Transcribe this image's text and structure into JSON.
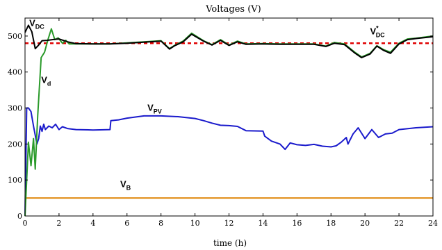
{
  "chart_data": {
    "type": "line",
    "title": "Voltages (V)",
    "xlabel": "time (h)",
    "ylabel": "",
    "xlim": [
      0,
      24
    ],
    "ylim": [
      0,
      550
    ],
    "x_ticks": [
      0,
      2,
      4,
      6,
      8,
      10,
      12,
      14,
      16,
      18,
      20,
      22,
      24
    ],
    "y_ticks": [
      0,
      100,
      200,
      300,
      400,
      500
    ],
    "grid": false,
    "colors": {
      "v_dc": "#000000",
      "v_dc_ref": "#e00000",
      "v_d": "#2a9a2a",
      "v_pv": "#1a1acc",
      "v_b": "#e08a10"
    },
    "series": [
      {
        "key": "v_dc_ref",
        "name": "V*DC",
        "label_main": "V",
        "label_sub": "DC",
        "label_sup": "*",
        "style": "dashed",
        "x": [
          0,
          24
        ],
        "y": [
          480,
          480
        ]
      },
      {
        "key": "v_b",
        "name": "VB",
        "label_main": "V",
        "label_sub": "B",
        "style": "solid",
        "x": [
          0,
          24
        ],
        "y": [
          50,
          50
        ]
      },
      {
        "key": "v_pv",
        "name": "VPV",
        "label_main": "V",
        "label_sub": "PV",
        "style": "solid",
        "x": [
          0,
          0.1,
          0.2,
          0.35,
          0.5,
          0.7,
          0.8,
          0.9,
          1.0,
          1.1,
          1.2,
          1.4,
          1.6,
          1.8,
          2.0,
          2.2,
          2.5,
          3.0,
          4.0,
          5.0,
          5.05,
          5.5,
          6.0,
          7.0,
          8.0,
          9.0,
          10.0,
          10.5,
          11.0,
          11.5,
          12.0,
          12.5,
          13.0,
          14.0,
          14.1,
          14.5,
          15.0,
          15.3,
          15.6,
          16.0,
          16.5,
          17.0,
          17.5,
          18.0,
          18.3,
          18.6,
          18.9,
          19.0,
          19.3,
          19.6,
          20.0,
          20.4,
          20.8,
          21.2,
          21.6,
          22.0,
          23.0,
          24.0
        ],
        "y": [
          0,
          300,
          300,
          290,
          250,
          200,
          215,
          250,
          235,
          255,
          240,
          250,
          245,
          255,
          240,
          248,
          243,
          240,
          239,
          240,
          265,
          267,
          272,
          278,
          278,
          276,
          271,
          265,
          258,
          252,
          251,
          249,
          237,
          236,
          222,
          208,
          200,
          185,
          203,
          198,
          196,
          199,
          194,
          192,
          195,
          205,
          218,
          200,
          228,
          245,
          215,
          240,
          218,
          228,
          230,
          240,
          245,
          248
        ]
      },
      {
        "key": "v_d",
        "name": "Vd",
        "label_main": "V",
        "label_sub": "d",
        "style": "solid",
        "x": [
          0,
          0.1,
          0.2,
          0.35,
          0.5,
          0.6,
          0.75,
          0.95,
          1.15,
          1.35,
          1.55,
          1.75,
          1.95,
          2.2,
          2.4,
          2.6,
          3.0,
          4.0,
          5.0,
          6.0,
          7.0,
          8.0,
          8.5,
          8.8,
          9.3,
          9.8,
          10.5,
          11.0,
          11.5,
          12.0,
          12.5,
          13.0,
          14.0,
          15.0,
          16.0,
          17.0,
          17.7,
          18.2,
          18.8,
          19.4,
          19.8,
          20.3,
          20.7,
          21.1,
          21.5,
          22.0,
          22.5,
          23.0,
          24.0
        ],
        "y": [
          0,
          100,
          205,
          140,
          215,
          130,
          280,
          440,
          455,
          490,
          520,
          490,
          495,
          480,
          488,
          478,
          478,
          478,
          478,
          481,
          484,
          487,
          465,
          474,
          486,
          508,
          487,
          476,
          490,
          475,
          486,
          478,
          479,
          478,
          478,
          478,
          472,
          482,
          478,
          455,
          442,
          452,
          473,
          462,
          455,
          480,
          492,
          494,
          500
        ]
      },
      {
        "key": "v_dc",
        "name": "VDC",
        "label_main": "V",
        "label_sub": "DC",
        "style": "solid",
        "x": [
          0,
          0.2,
          0.4,
          0.6,
          0.8,
          1.0,
          1.3,
          1.6,
          2.0,
          2.5,
          3.0,
          4.0,
          5.0,
          6.0,
          7.0,
          8.0,
          8.5,
          8.8,
          9.3,
          9.8,
          10.5,
          11.0,
          11.5,
          12.0,
          12.5,
          13.0,
          14.0,
          15.0,
          16.0,
          17.0,
          17.7,
          18.2,
          18.8,
          19.4,
          19.8,
          20.3,
          20.7,
          21.1,
          21.5,
          22.0,
          22.5,
          23.0,
          24.0
        ],
        "y": [
          510,
          530,
          512,
          465,
          475,
          487,
          488,
          490,
          492,
          484,
          479,
          478,
          478,
          480,
          483,
          486,
          464,
          473,
          484,
          505,
          486,
          475,
          488,
          474,
          484,
          477,
          478,
          477,
          477,
          477,
          471,
          480,
          476,
          453,
          440,
          450,
          472,
          460,
          452,
          478,
          490,
          493,
          498
        ]
      }
    ],
    "annotations": [
      {
        "series": "v_dc",
        "x": 0.25,
        "y": 528
      },
      {
        "series": "v_dc_ref",
        "x": 20.3,
        "y": 505
      },
      {
        "series": "v_d",
        "x": 0.95,
        "y": 370
      },
      {
        "series": "v_pv",
        "x": 7.2,
        "y": 292
      },
      {
        "series": "v_b",
        "x": 5.6,
        "y": 80
      }
    ]
  }
}
